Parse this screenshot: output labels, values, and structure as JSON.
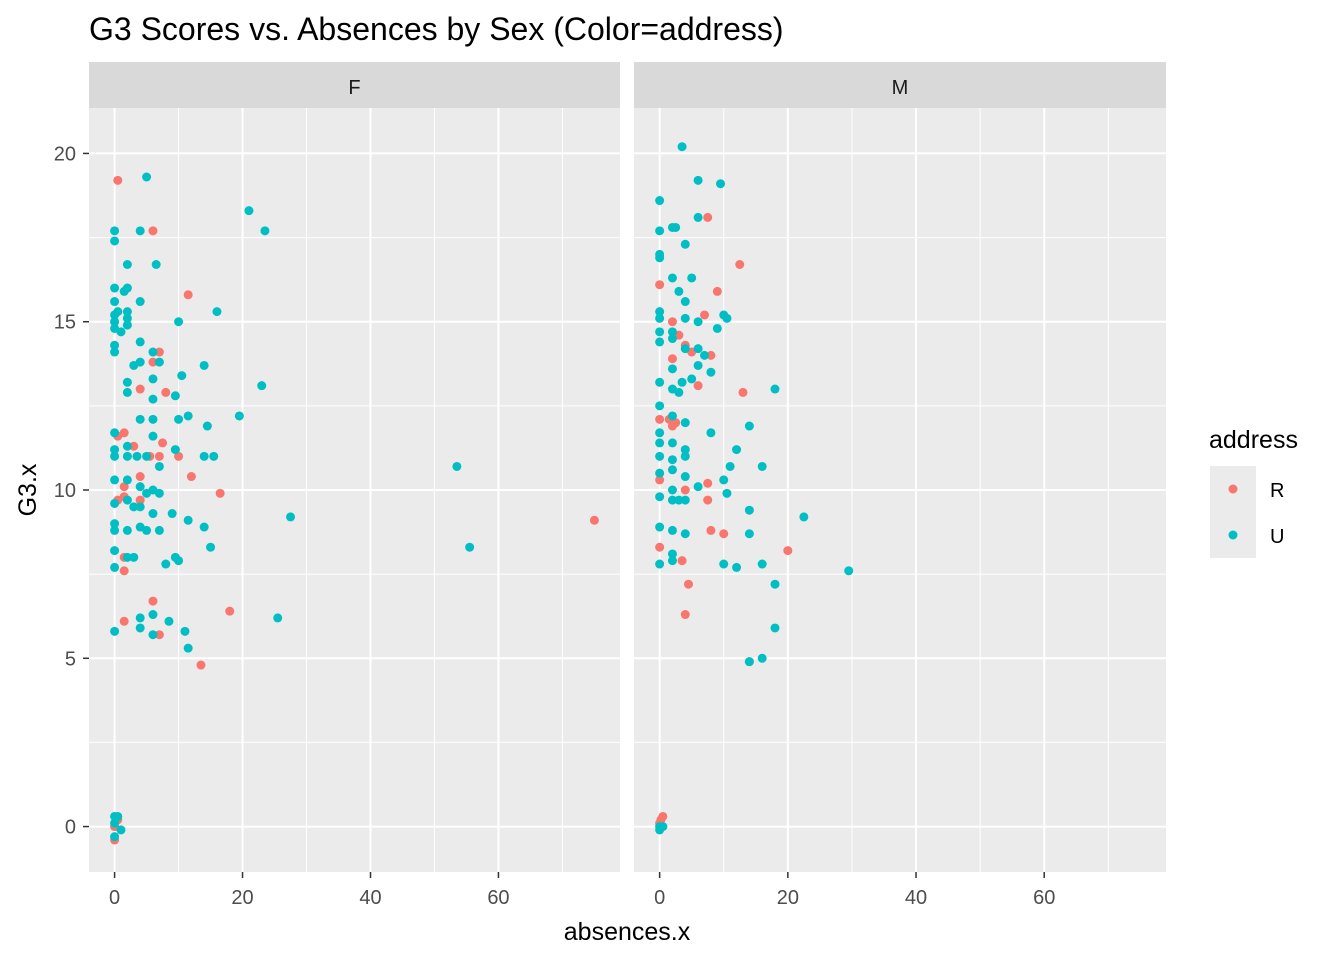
{
  "chart_data": {
    "type": "scatter",
    "title": "G3 Scores vs. Absences by Sex (Color=address)",
    "xlabel": "absences.x",
    "ylabel": "G3.x",
    "xlim": [
      -4,
      79
    ],
    "ylim": [
      -1.35,
      21.35
    ],
    "x_ticks": [
      0,
      20,
      40,
      60
    ],
    "y_ticks": [
      0,
      5,
      10,
      15,
      20
    ],
    "facet_var": "sex",
    "facets": [
      "F",
      "M"
    ],
    "legend": {
      "title": "address",
      "entries": [
        {
          "name": "R",
          "color": "#F8766D"
        },
        {
          "name": "U",
          "color": "#00BFC4"
        }
      ],
      "position": "right"
    },
    "grid": true,
    "series": [
      {
        "name": "R",
        "color": "#F8766D",
        "points": {
          "F": [
            [
              0.5,
              19.2
            ],
            [
              6,
              17.7
            ],
            [
              11.5,
              15.8
            ],
            [
              7,
              14.1
            ],
            [
              6,
              13.8
            ],
            [
              4,
              13.0
            ],
            [
              8,
              12.9
            ],
            [
              1.5,
              11.7
            ],
            [
              0.5,
              11.6
            ],
            [
              3,
              11.3
            ],
            [
              7.5,
              11.4
            ],
            [
              5.5,
              11.0
            ],
            [
              7,
              11.0
            ],
            [
              10,
              11.0
            ],
            [
              12,
              10.4
            ],
            [
              4,
              10.4
            ],
            [
              1.5,
              10.1
            ],
            [
              1.5,
              9.8
            ],
            [
              4,
              9.7
            ],
            [
              0.5,
              9.7
            ],
            [
              16.5,
              9.9
            ],
            [
              75,
              9.1
            ],
            [
              1.5,
              8.0
            ],
            [
              1.5,
              7.6
            ],
            [
              6,
              6.7
            ],
            [
              18,
              6.4
            ],
            [
              1.5,
              6.1
            ],
            [
              7,
              5.7
            ],
            [
              13.5,
              4.8
            ],
            [
              0,
              0.0
            ],
            [
              0.5,
              0.2
            ],
            [
              0,
              -0.4
            ]
          ],
          "M": [
            [
              0,
              16.1
            ],
            [
              12.5,
              16.7
            ],
            [
              7.5,
              18.1
            ],
            [
              9,
              15.9
            ],
            [
              7,
              15.2
            ],
            [
              2,
              15.0
            ],
            [
              3,
              14.6
            ],
            [
              4,
              14.3
            ],
            [
              2,
              13.9
            ],
            [
              5,
              14.1
            ],
            [
              8,
              14.0
            ],
            [
              6,
              13.1
            ],
            [
              13,
              12.9
            ],
            [
              0,
              12.1
            ],
            [
              1.5,
              12.1
            ],
            [
              2,
              11.9
            ],
            [
              2.5,
              12.0
            ],
            [
              0,
              10.3
            ],
            [
              4,
              10.0
            ],
            [
              7.5,
              10.2
            ],
            [
              7.5,
              9.7
            ],
            [
              8,
              8.8
            ],
            [
              10,
              8.7
            ],
            [
              3.5,
              7.9
            ],
            [
              4.5,
              7.2
            ],
            [
              20,
              8.2
            ],
            [
              0,
              8.3
            ],
            [
              14,
              4.9
            ],
            [
              4,
              6.3
            ],
            [
              0,
              0.1
            ],
            [
              0.5,
              0.3
            ],
            [
              0.2,
              0.2
            ]
          ]
        }
      },
      {
        "name": "U",
        "color": "#00BFC4",
        "points": {
          "F": [
            [
              0,
              17.4
            ],
            [
              0,
              17.7
            ],
            [
              2,
              16.7
            ],
            [
              5,
              19.3
            ],
            [
              4,
              17.7
            ],
            [
              6.5,
              16.7
            ],
            [
              21,
              18.3
            ],
            [
              23.5,
              17.7
            ],
            [
              0,
              16.0
            ],
            [
              0,
              15.6
            ],
            [
              1.5,
              15.9
            ],
            [
              2,
              16.0
            ],
            [
              4,
              15.6
            ],
            [
              0,
              15.2
            ],
            [
              0.5,
              15.3
            ],
            [
              2,
              15.3
            ],
            [
              2,
              15.1
            ],
            [
              0,
              15.0
            ],
            [
              0,
              14.8
            ],
            [
              1,
              14.7
            ],
            [
              2,
              14.9
            ],
            [
              10,
              15.0
            ],
            [
              16,
              15.3
            ],
            [
              0,
              14.3
            ],
            [
              0,
              14.1
            ],
            [
              4,
              14.4
            ],
            [
              6,
              14.1
            ],
            [
              7,
              13.8
            ],
            [
              3,
              13.7
            ],
            [
              4,
              13.8
            ],
            [
              14,
              13.7
            ],
            [
              10.5,
              13.4
            ],
            [
              2,
              13.2
            ],
            [
              6,
              13.3
            ],
            [
              23,
              13.1
            ],
            [
              2,
              12.9
            ],
            [
              6,
              12.7
            ],
            [
              9.5,
              12.8
            ],
            [
              4,
              12.1
            ],
            [
              6,
              12.1
            ],
            [
              10,
              12.1
            ],
            [
              11.5,
              12.2
            ],
            [
              19.5,
              12.2
            ],
            [
              0,
              11.7
            ],
            [
              6,
              11.6
            ],
            [
              14.5,
              11.9
            ],
            [
              0,
              11.2
            ],
            [
              2,
              11.3
            ],
            [
              3.5,
              11.0
            ],
            [
              2,
              11.0
            ],
            [
              0,
              11.0
            ],
            [
              5,
              11.0
            ],
            [
              7,
              10.7
            ],
            [
              9.5,
              11.2
            ],
            [
              14,
              11.0
            ],
            [
              15.5,
              11.0
            ],
            [
              53.5,
              10.7
            ],
            [
              0,
              10.3
            ],
            [
              2,
              10.3
            ],
            [
              4,
              10.1
            ],
            [
              5,
              9.9
            ],
            [
              6,
              10.0
            ],
            [
              7,
              9.9
            ],
            [
              0,
              9.6
            ],
            [
              2,
              9.7
            ],
            [
              3,
              9.5
            ],
            [
              4,
              9.5
            ],
            [
              6,
              9.3
            ],
            [
              9,
              9.3
            ],
            [
              0,
              9.0
            ],
            [
              0,
              8.8
            ],
            [
              2,
              8.8
            ],
            [
              4,
              8.9
            ],
            [
              5,
              8.8
            ],
            [
              7,
              8.8
            ],
            [
              11.5,
              9.1
            ],
            [
              14,
              8.9
            ],
            [
              27.5,
              9.2
            ],
            [
              0,
              8.2
            ],
            [
              2,
              8.0
            ],
            [
              3,
              8.0
            ],
            [
              9.5,
              8.0
            ],
            [
              10,
              7.9
            ],
            [
              15,
              8.3
            ],
            [
              55.5,
              8.3
            ],
            [
              0,
              7.7
            ],
            [
              8,
              7.8
            ],
            [
              0,
              5.8
            ],
            [
              4,
              6.2
            ],
            [
              6,
              6.3
            ],
            [
              8.5,
              6.1
            ],
            [
              11,
              5.8
            ],
            [
              4,
              5.9
            ],
            [
              6,
              5.7
            ],
            [
              11.5,
              5.3
            ],
            [
              25.5,
              6.2
            ],
            [
              0,
              0.3
            ],
            [
              0.5,
              0.3
            ],
            [
              0,
              0.1
            ],
            [
              1,
              -0.1
            ],
            [
              0,
              -0.3
            ]
          ],
          "M": [
            [
              3.5,
              20.2
            ],
            [
              0,
              18.6
            ],
            [
              6,
              19.2
            ],
            [
              9.5,
              19.1
            ],
            [
              6,
              18.1
            ],
            [
              2,
              17.8
            ],
            [
              2.5,
              17.8
            ],
            [
              0,
              17.7
            ],
            [
              0,
              17.0
            ],
            [
              4,
              17.3
            ],
            [
              2,
              16.3
            ],
            [
              0,
              16.9
            ],
            [
              5,
              16.3
            ],
            [
              3,
              15.9
            ],
            [
              4,
              15.6
            ],
            [
              0,
              15.3
            ],
            [
              0,
              15.1
            ],
            [
              0,
              14.7
            ],
            [
              2,
              14.7
            ],
            [
              4,
              15.1
            ],
            [
              6,
              15.0
            ],
            [
              9,
              14.8
            ],
            [
              10,
              15.2
            ],
            [
              10.5,
              15.1
            ],
            [
              0,
              14.4
            ],
            [
              2,
              14.5
            ],
            [
              4,
              14.2
            ],
            [
              6,
              14.2
            ],
            [
              7,
              14.0
            ],
            [
              2,
              13.6
            ],
            [
              6,
              13.7
            ],
            [
              8,
              13.5
            ],
            [
              3.5,
              13.2
            ],
            [
              5,
              13.3
            ],
            [
              0,
              13.2
            ],
            [
              2,
              13.0
            ],
            [
              3,
              12.9
            ],
            [
              0,
              12.5
            ],
            [
              2,
              12.2
            ],
            [
              4,
              12.0
            ],
            [
              14,
              11.9
            ],
            [
              18,
              13.0
            ],
            [
              0,
              11.7
            ],
            [
              0,
              11.4
            ],
            [
              2,
              11.4
            ],
            [
              4,
              11.2
            ],
            [
              8,
              11.7
            ],
            [
              12,
              11.2
            ],
            [
              0,
              11.0
            ],
            [
              2,
              10.9
            ],
            [
              4,
              11.0
            ],
            [
              11,
              10.7
            ],
            [
              0,
              10.5
            ],
            [
              2,
              10.6
            ],
            [
              4,
              10.4
            ],
            [
              10,
              10.3
            ],
            [
              16,
              10.7
            ],
            [
              6,
              10.1
            ],
            [
              2,
              10.0
            ],
            [
              10.5,
              9.9
            ],
            [
              0,
              9.8
            ],
            [
              2,
              9.7
            ],
            [
              3,
              9.7
            ],
            [
              4,
              9.7
            ],
            [
              14,
              9.4
            ],
            [
              22.5,
              9.2
            ],
            [
              0,
              8.9
            ],
            [
              2,
              8.8
            ],
            [
              4,
              8.7
            ],
            [
              14,
              8.7
            ],
            [
              2,
              8.1
            ],
            [
              2,
              7.9
            ],
            [
              10,
              7.8
            ],
            [
              12,
              7.7
            ],
            [
              16,
              7.8
            ],
            [
              18,
              7.2
            ],
            [
              29.5,
              7.6
            ],
            [
              0,
              7.8
            ],
            [
              18,
              5.9
            ],
            [
              16,
              5.0
            ],
            [
              14,
              4.9
            ],
            [
              0,
              0.0
            ],
            [
              0,
              -0.1
            ],
            [
              0.5,
              0.0
            ]
          ]
        }
      }
    ]
  }
}
